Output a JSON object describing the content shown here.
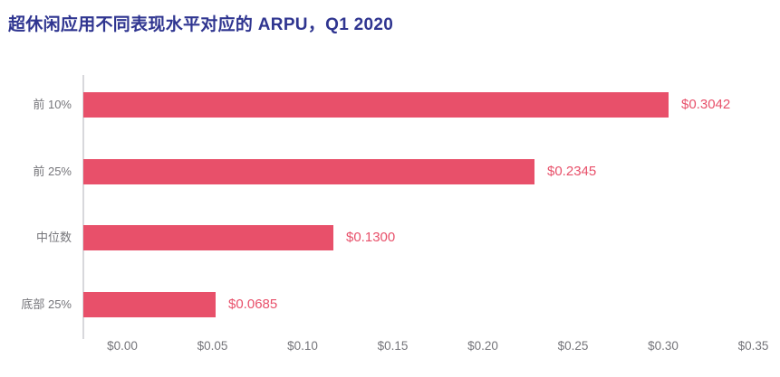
{
  "title": "超休闲应用不同表现水平对应的 ARPU，Q1 2020",
  "colors": {
    "background": "#ffffff",
    "title": "#2f3590",
    "bar": "#e8506a",
    "value_label": "#e8506a",
    "axis_text": "#75757a",
    "axis_line": "#d8d8dc"
  },
  "chart_data": {
    "type": "bar",
    "orientation": "horizontal",
    "title": "超休闲应用不同表现水平对应的 ARPU，Q1 2020",
    "categories": [
      "前 10%",
      "前 25%",
      "中位数",
      "底部 25%"
    ],
    "values": [
      0.3042,
      0.2345,
      0.13,
      0.0685
    ],
    "value_labels": [
      "$0.3042",
      "$0.2345",
      "$0.1300",
      "$0.0685"
    ],
    "x_tick_labels": [
      "$0.00",
      "$0.05",
      "$0.10",
      "$0.15",
      "$0.20",
      "$0.25",
      "$0.30",
      "$0.35"
    ],
    "x_tick_values": [
      0,
      0.05,
      0.1,
      0.15,
      0.2,
      0.25,
      0.3,
      0.35
    ],
    "xlim": [
      0,
      0.35
    ],
    "xlabel": "",
    "ylabel": "",
    "grid": false,
    "legend": "none"
  }
}
